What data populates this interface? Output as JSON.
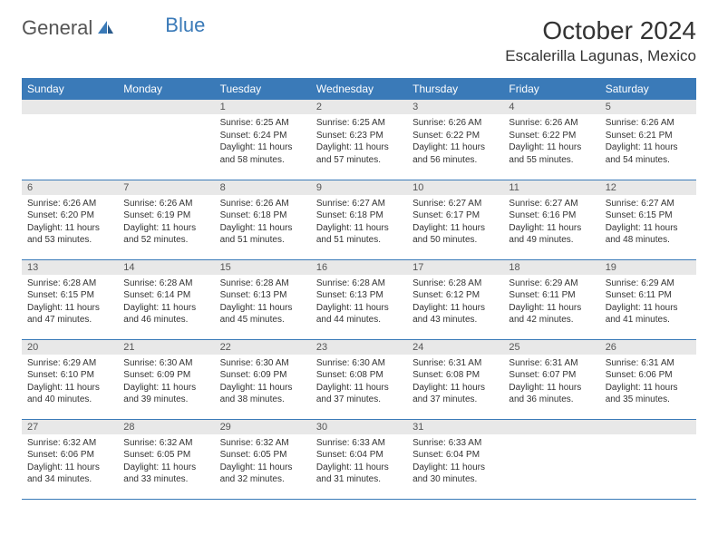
{
  "logo": {
    "text1": "General",
    "text2": "Blue"
  },
  "month_title": "October 2024",
  "location": "Escalerilla Lagunas, Mexico",
  "colors": {
    "header_bg": "#3a7ab8",
    "header_text": "#ffffff",
    "daynum_bg": "#e8e8e8",
    "border": "#3a7ab8",
    "logo_blue": "#3a7ab8"
  },
  "typography": {
    "title_size": 28,
    "location_size": 17,
    "th_size": 12,
    "body_size": 10
  },
  "weekday_labels": [
    "Sunday",
    "Monday",
    "Tuesday",
    "Wednesday",
    "Thursday",
    "Friday",
    "Saturday"
  ],
  "weeks": [
    [
      {
        "empty": true
      },
      {
        "empty": true
      },
      {
        "day": "1",
        "sunrise": "Sunrise: 6:25 AM",
        "sunset": "Sunset: 6:24 PM",
        "daylight": "Daylight: 11 hours and 58 minutes."
      },
      {
        "day": "2",
        "sunrise": "Sunrise: 6:25 AM",
        "sunset": "Sunset: 6:23 PM",
        "daylight": "Daylight: 11 hours and 57 minutes."
      },
      {
        "day": "3",
        "sunrise": "Sunrise: 6:26 AM",
        "sunset": "Sunset: 6:22 PM",
        "daylight": "Daylight: 11 hours and 56 minutes."
      },
      {
        "day": "4",
        "sunrise": "Sunrise: 6:26 AM",
        "sunset": "Sunset: 6:22 PM",
        "daylight": "Daylight: 11 hours and 55 minutes."
      },
      {
        "day": "5",
        "sunrise": "Sunrise: 6:26 AM",
        "sunset": "Sunset: 6:21 PM",
        "daylight": "Daylight: 11 hours and 54 minutes."
      }
    ],
    [
      {
        "day": "6",
        "sunrise": "Sunrise: 6:26 AM",
        "sunset": "Sunset: 6:20 PM",
        "daylight": "Daylight: 11 hours and 53 minutes."
      },
      {
        "day": "7",
        "sunrise": "Sunrise: 6:26 AM",
        "sunset": "Sunset: 6:19 PM",
        "daylight": "Daylight: 11 hours and 52 minutes."
      },
      {
        "day": "8",
        "sunrise": "Sunrise: 6:26 AM",
        "sunset": "Sunset: 6:18 PM",
        "daylight": "Daylight: 11 hours and 51 minutes."
      },
      {
        "day": "9",
        "sunrise": "Sunrise: 6:27 AM",
        "sunset": "Sunset: 6:18 PM",
        "daylight": "Daylight: 11 hours and 51 minutes."
      },
      {
        "day": "10",
        "sunrise": "Sunrise: 6:27 AM",
        "sunset": "Sunset: 6:17 PM",
        "daylight": "Daylight: 11 hours and 50 minutes."
      },
      {
        "day": "11",
        "sunrise": "Sunrise: 6:27 AM",
        "sunset": "Sunset: 6:16 PM",
        "daylight": "Daylight: 11 hours and 49 minutes."
      },
      {
        "day": "12",
        "sunrise": "Sunrise: 6:27 AM",
        "sunset": "Sunset: 6:15 PM",
        "daylight": "Daylight: 11 hours and 48 minutes."
      }
    ],
    [
      {
        "day": "13",
        "sunrise": "Sunrise: 6:28 AM",
        "sunset": "Sunset: 6:15 PM",
        "daylight": "Daylight: 11 hours and 47 minutes."
      },
      {
        "day": "14",
        "sunrise": "Sunrise: 6:28 AM",
        "sunset": "Sunset: 6:14 PM",
        "daylight": "Daylight: 11 hours and 46 minutes."
      },
      {
        "day": "15",
        "sunrise": "Sunrise: 6:28 AM",
        "sunset": "Sunset: 6:13 PM",
        "daylight": "Daylight: 11 hours and 45 minutes."
      },
      {
        "day": "16",
        "sunrise": "Sunrise: 6:28 AM",
        "sunset": "Sunset: 6:13 PM",
        "daylight": "Daylight: 11 hours and 44 minutes."
      },
      {
        "day": "17",
        "sunrise": "Sunrise: 6:28 AM",
        "sunset": "Sunset: 6:12 PM",
        "daylight": "Daylight: 11 hours and 43 minutes."
      },
      {
        "day": "18",
        "sunrise": "Sunrise: 6:29 AM",
        "sunset": "Sunset: 6:11 PM",
        "daylight": "Daylight: 11 hours and 42 minutes."
      },
      {
        "day": "19",
        "sunrise": "Sunrise: 6:29 AM",
        "sunset": "Sunset: 6:11 PM",
        "daylight": "Daylight: 11 hours and 41 minutes."
      }
    ],
    [
      {
        "day": "20",
        "sunrise": "Sunrise: 6:29 AM",
        "sunset": "Sunset: 6:10 PM",
        "daylight": "Daylight: 11 hours and 40 minutes."
      },
      {
        "day": "21",
        "sunrise": "Sunrise: 6:30 AM",
        "sunset": "Sunset: 6:09 PM",
        "daylight": "Daylight: 11 hours and 39 minutes."
      },
      {
        "day": "22",
        "sunrise": "Sunrise: 6:30 AM",
        "sunset": "Sunset: 6:09 PM",
        "daylight": "Daylight: 11 hours and 38 minutes."
      },
      {
        "day": "23",
        "sunrise": "Sunrise: 6:30 AM",
        "sunset": "Sunset: 6:08 PM",
        "daylight": "Daylight: 11 hours and 37 minutes."
      },
      {
        "day": "24",
        "sunrise": "Sunrise: 6:31 AM",
        "sunset": "Sunset: 6:08 PM",
        "daylight": "Daylight: 11 hours and 37 minutes."
      },
      {
        "day": "25",
        "sunrise": "Sunrise: 6:31 AM",
        "sunset": "Sunset: 6:07 PM",
        "daylight": "Daylight: 11 hours and 36 minutes."
      },
      {
        "day": "26",
        "sunrise": "Sunrise: 6:31 AM",
        "sunset": "Sunset: 6:06 PM",
        "daylight": "Daylight: 11 hours and 35 minutes."
      }
    ],
    [
      {
        "day": "27",
        "sunrise": "Sunrise: 6:32 AM",
        "sunset": "Sunset: 6:06 PM",
        "daylight": "Daylight: 11 hours and 34 minutes."
      },
      {
        "day": "28",
        "sunrise": "Sunrise: 6:32 AM",
        "sunset": "Sunset: 6:05 PM",
        "daylight": "Daylight: 11 hours and 33 minutes."
      },
      {
        "day": "29",
        "sunrise": "Sunrise: 6:32 AM",
        "sunset": "Sunset: 6:05 PM",
        "daylight": "Daylight: 11 hours and 32 minutes."
      },
      {
        "day": "30",
        "sunrise": "Sunrise: 6:33 AM",
        "sunset": "Sunset: 6:04 PM",
        "daylight": "Daylight: 11 hours and 31 minutes."
      },
      {
        "day": "31",
        "sunrise": "Sunrise: 6:33 AM",
        "sunset": "Sunset: 6:04 PM",
        "daylight": "Daylight: 11 hours and 30 minutes."
      },
      {
        "empty": true
      },
      {
        "empty": true
      }
    ]
  ]
}
